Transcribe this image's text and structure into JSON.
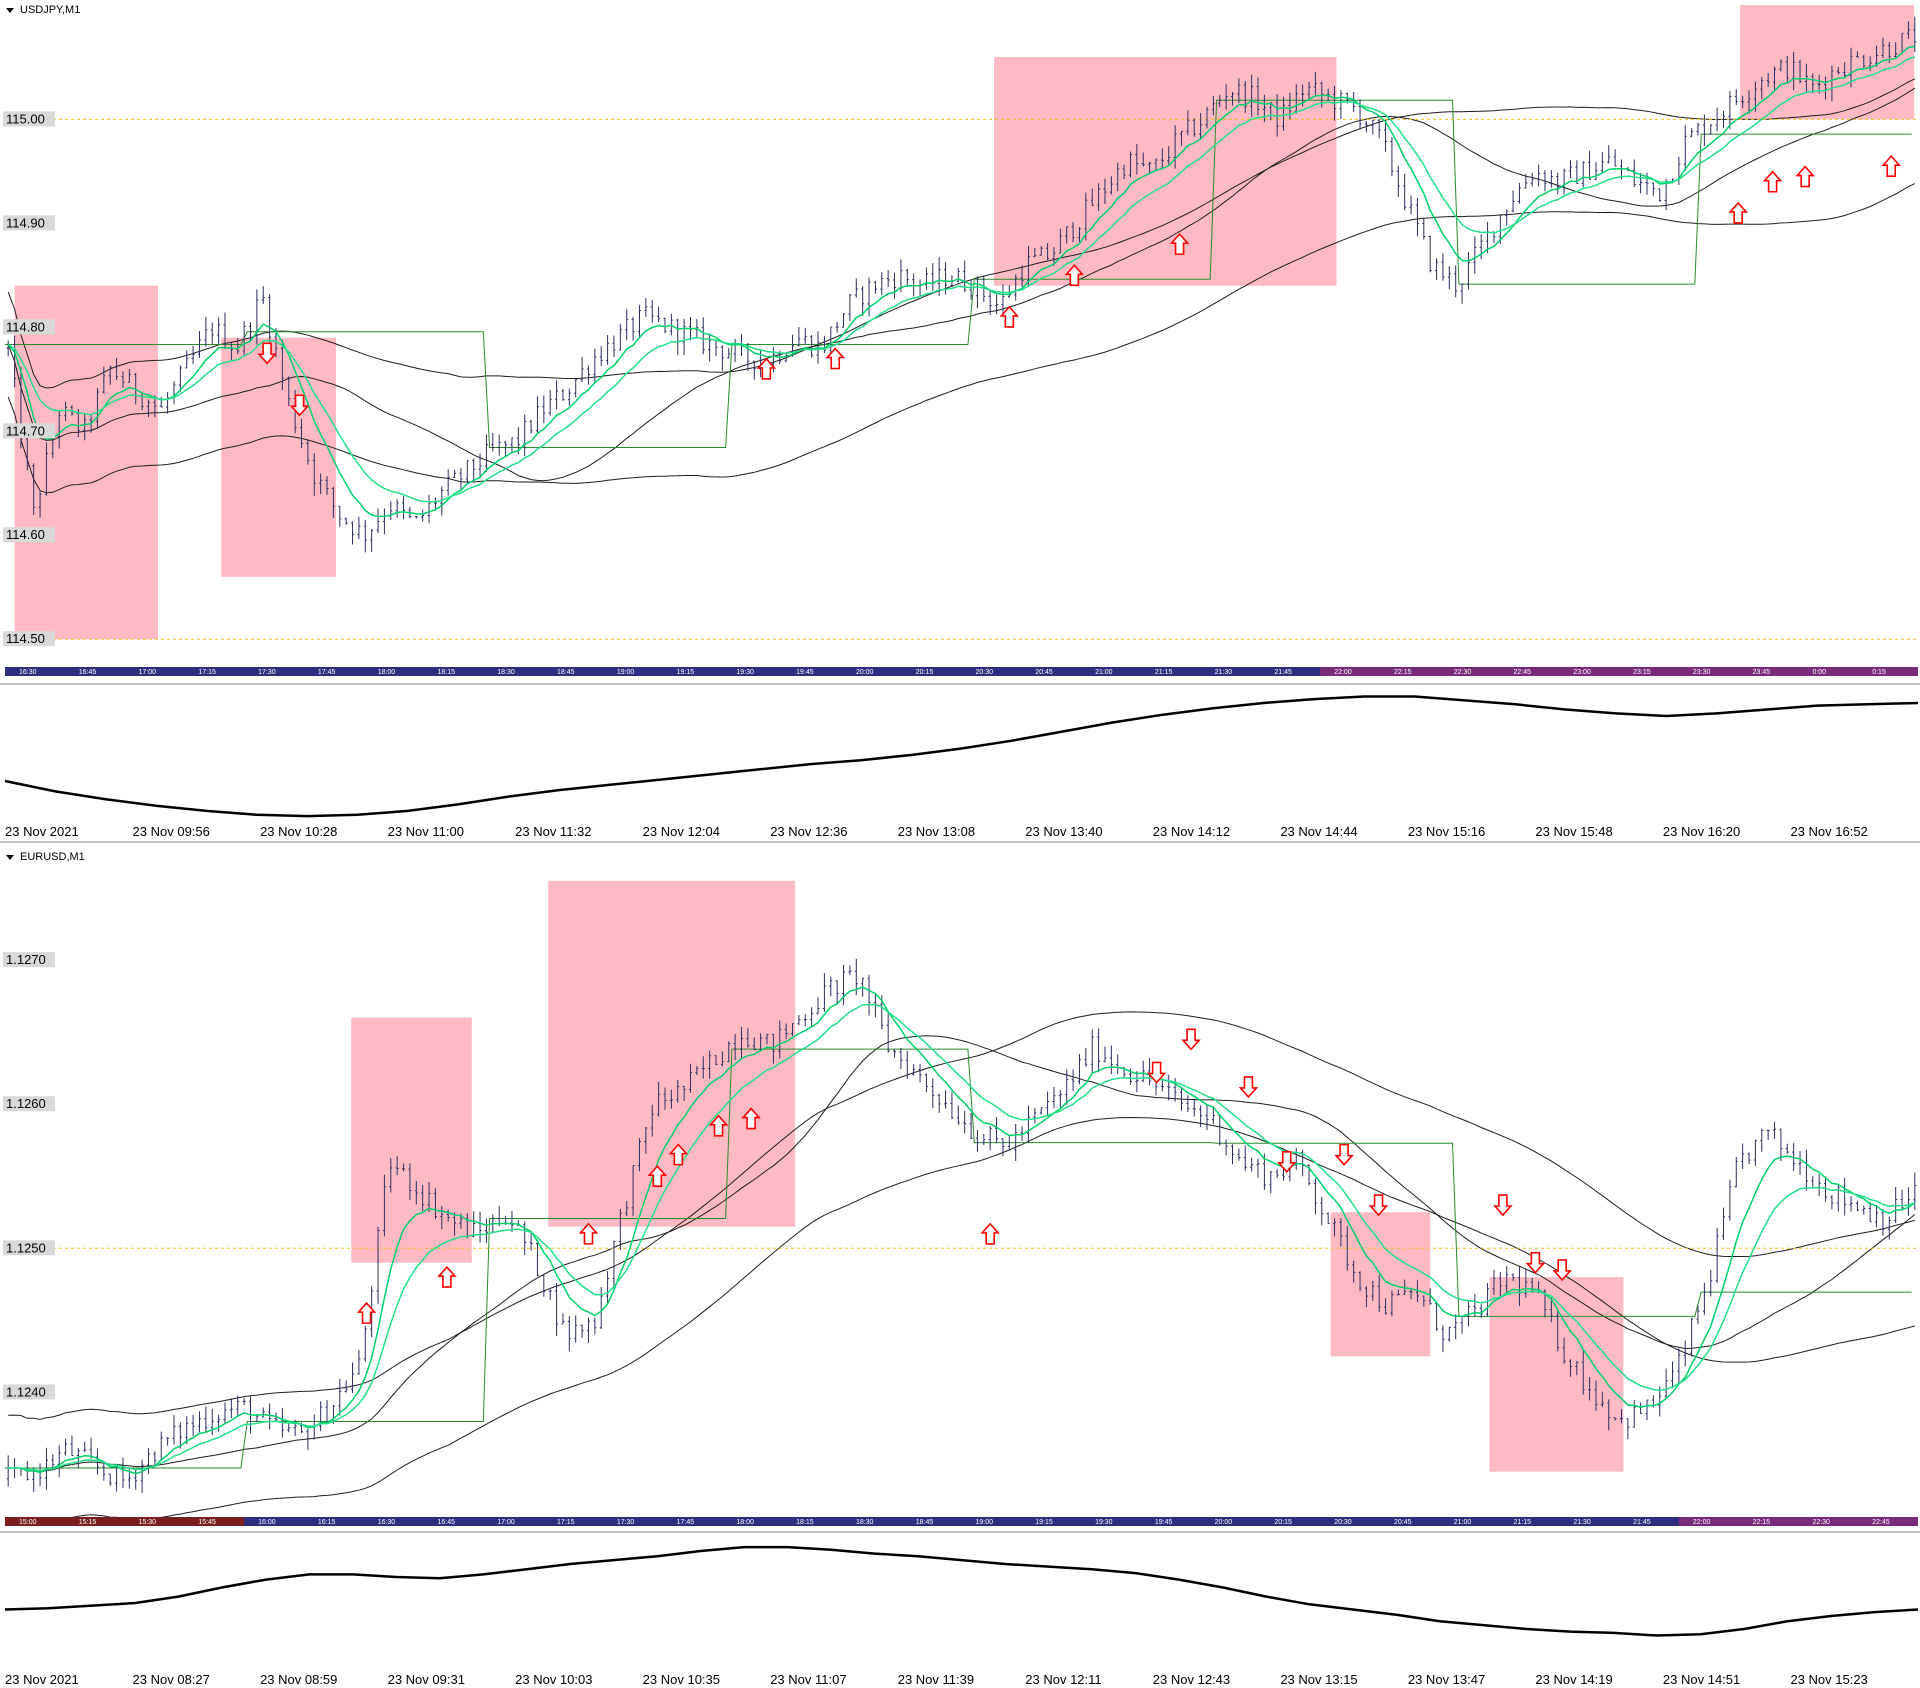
{
  "colors": {
    "background": "#ffffff",
    "candle": "#2b2d63",
    "zone": "#ffb6c1",
    "ma_fast": "#00d26a",
    "ma_slow": "#22e08a",
    "band": "#1e1e1e",
    "stepline": "#2a8a2a",
    "arrow": "#ff0000",
    "level": "#f0c020",
    "oscillator": "#000000",
    "time_strip_a": "#2e2e80",
    "time_strip_b": "#7a1e1e",
    "time_strip_c": "#7a2a7a"
  },
  "chart_data": [
    {
      "type": "candlestick",
      "title": "USDJPY,M1",
      "y_ticks": [
        "115.00",
        "114.90",
        "114.80",
        "114.70",
        "114.60",
        "114.50"
      ],
      "ylim": [
        114.48,
        115.11
      ],
      "horizontal_levels": [
        115.0,
        114.5
      ],
      "time_strip_labels": [
        "16:30",
        "16:45",
        "17:00",
        "17:15",
        "17:30",
        "17:45",
        "18:00",
        "18:15",
        "18:30",
        "18:45",
        "19:00",
        "19:15",
        "19:30",
        "19:45",
        "20:00",
        "20:15",
        "20:30",
        "20:45",
        "21:00",
        "21:15",
        "21:30",
        "21:45",
        "22:00",
        "22:15",
        "22:30",
        "22:45",
        "23:00",
        "23:15",
        "23:30",
        "23:45",
        "0:00",
        "0:15"
      ],
      "x_axis_labels": [
        "23 Nov 2021",
        "23 Nov 09:56",
        "23 Nov 10:28",
        "23 Nov 11:00",
        "23 Nov 11:32",
        "23 Nov 12:04",
        "23 Nov 12:36",
        "23 Nov 13:08",
        "23 Nov 13:40",
        "23 Nov 14:12",
        "23 Nov 14:44",
        "23 Nov 15:16",
        "23 Nov 15:48",
        "23 Nov 16:20",
        "23 Nov 16:52"
      ],
      "close_series": [
        114.78,
        114.62,
        114.72,
        114.7,
        114.76,
        114.74,
        114.72,
        114.76,
        114.8,
        114.78,
        114.83,
        114.73,
        114.66,
        114.62,
        114.6,
        114.63,
        114.61,
        114.64,
        114.66,
        114.68,
        114.69,
        114.72,
        114.74,
        114.77,
        114.79,
        114.81,
        114.8,
        114.79,
        114.78,
        114.77,
        114.77,
        114.79,
        114.78,
        114.82,
        114.84,
        114.85,
        114.84,
        114.85,
        114.84,
        114.82,
        114.86,
        114.87,
        114.9,
        114.93,
        114.96,
        114.95,
        114.98,
        115.0,
        115.03,
        115.02,
        115.0,
        115.03,
        115.02,
        115.01,
        114.98,
        114.92,
        114.86,
        114.84,
        114.88,
        114.92,
        114.95,
        114.94,
        114.95,
        114.96,
        114.94,
        114.93,
        114.98,
        115.0,
        115.02,
        115.04,
        115.05,
        115.03,
        115.05,
        115.06,
        115.07,
        115.08
      ],
      "zones": [
        {
          "from": 0.005,
          "to": 0.08,
          "low": 114.5,
          "high": 114.84
        },
        {
          "from": 0.113,
          "to": 0.173,
          "low": 114.56,
          "high": 114.79
        },
        {
          "from": 0.517,
          "to": 0.696,
          "low": 114.84,
          "high": 115.06
        },
        {
          "from": 0.907,
          "to": 0.998,
          "low": 115.0,
          "high": 115.11
        }
      ],
      "arrows": [
        {
          "t": 0.137,
          "y": 114.775,
          "dir": "down"
        },
        {
          "t": 0.154,
          "y": 114.725,
          "dir": "down"
        },
        {
          "t": 0.398,
          "y": 114.76,
          "dir": "up"
        },
        {
          "t": 0.434,
          "y": 114.77,
          "dir": "up"
        },
        {
          "t": 0.525,
          "y": 114.81,
          "dir": "up"
        },
        {
          "t": 0.559,
          "y": 114.85,
          "dir": "up"
        },
        {
          "t": 0.614,
          "y": 114.88,
          "dir": "up"
        },
        {
          "t": 0.906,
          "y": 114.91,
          "dir": "up"
        },
        {
          "t": 0.924,
          "y": 114.94,
          "dir": "up"
        },
        {
          "t": 0.941,
          "y": 114.945,
          "dir": "up"
        },
        {
          "t": 0.986,
          "y": 114.955,
          "dir": "up"
        }
      ],
      "oscillator": [
        0.3,
        0.22,
        0.16,
        0.11,
        0.07,
        0.04,
        0.03,
        0.04,
        0.07,
        0.12,
        0.18,
        0.23,
        0.27,
        0.31,
        0.35,
        0.39,
        0.43,
        0.46,
        0.5,
        0.55,
        0.61,
        0.68,
        0.75,
        0.81,
        0.86,
        0.9,
        0.93,
        0.95,
        0.95,
        0.92,
        0.89,
        0.85,
        0.82,
        0.8,
        0.82,
        0.85,
        0.88,
        0.89,
        0.9
      ]
    },
    {
      "type": "candlestick",
      "title": "EURUSD,M1",
      "y_ticks": [
        "1.1270",
        "1.1260",
        "1.1250",
        "1.1240"
      ],
      "ylim": [
        1.12317,
        1.12775
      ],
      "horizontal_levels": [
        1.125
      ],
      "time_strip_labels": [
        "15:00",
        "15:15",
        "15:30",
        "15:45",
        "16:00",
        "16:15",
        "16:30",
        "16:45",
        "17:00",
        "17:15",
        "17:30",
        "17:45",
        "18:00",
        "18:15",
        "18:30",
        "18:45",
        "19:00",
        "19:15",
        "19:30",
        "19:45",
        "20:00",
        "20:15",
        "20:30",
        "20:45",
        "21:00",
        "21:15",
        "21:30",
        "21:45",
        "22:00",
        "22:15",
        "22:30",
        "22:45"
      ],
      "x_axis_labels": [
        "23 Nov 2021",
        "23 Nov 08:27",
        "23 Nov 08:59",
        "23 Nov 09:31",
        "23 Nov 10:03",
        "23 Nov 10:35",
        "23 Nov 11:07",
        "23 Nov 11:39",
        "23 Nov 12:11",
        "23 Nov 12:43",
        "23 Nov 13:15",
        "23 Nov 13:47",
        "23 Nov 14:19",
        "23 Nov 14:51",
        "23 Nov 15:23"
      ],
      "close_series": [
        1.1234,
        1.12345,
        1.1236,
        1.12348,
        1.12338,
        1.1236,
        1.12375,
        1.12385,
        1.1239,
        1.12375,
        1.1237,
        1.1239,
        1.1242,
        1.1256,
        1.1254,
        1.1252,
        1.1251,
        1.12525,
        1.1249,
        1.1244,
        1.1245,
        1.1253,
        1.126,
        1.1261,
        1.1263,
        1.1265,
        1.1264,
        1.1266,
        1.1268,
        1.1269,
        1.1264,
        1.1262,
        1.126,
        1.1258,
        1.1257,
        1.1259,
        1.1261,
        1.1264,
        1.12625,
        1.12615,
        1.126,
        1.1259,
        1.1256,
        1.1255,
        1.1256,
        1.1252,
        1.1248,
        1.1246,
        1.1247,
        1.1244,
        1.12455,
        1.1248,
        1.1247,
        1.1243,
        1.124,
        1.1238,
        1.1239,
        1.1242,
        1.1248,
        1.1256,
        1.1258,
        1.1256,
        1.1254,
        1.1253,
        1.1252,
        1.1254
      ],
      "zones": [
        {
          "from": 0.181,
          "to": 0.244,
          "low": 1.1249,
          "high": 1.1266
        },
        {
          "from": 0.284,
          "to": 0.413,
          "low": 1.12515,
          "high": 1.12755
        },
        {
          "from": 0.693,
          "to": 0.745,
          "low": 1.12425,
          "high": 1.12525
        },
        {
          "from": 0.776,
          "to": 0.846,
          "low": 1.12345,
          "high": 1.1248
        }
      ],
      "arrows": [
        {
          "t": 0.189,
          "y": 1.12455,
          "dir": "up"
        },
        {
          "t": 0.231,
          "y": 1.1248,
          "dir": "up"
        },
        {
          "t": 0.305,
          "y": 1.1251,
          "dir": "up"
        },
        {
          "t": 0.341,
          "y": 1.1255,
          "dir": "up"
        },
        {
          "t": 0.352,
          "y": 1.12565,
          "dir": "up"
        },
        {
          "t": 0.373,
          "y": 1.12585,
          "dir": "up"
        },
        {
          "t": 0.39,
          "y": 1.1259,
          "dir": "up"
        },
        {
          "t": 0.515,
          "y": 1.1251,
          "dir": "up"
        },
        {
          "t": 0.602,
          "y": 1.12622,
          "dir": "down"
        },
        {
          "t": 0.62,
          "y": 1.12645,
          "dir": "down"
        },
        {
          "t": 0.65,
          "y": 1.12612,
          "dir": "down"
        },
        {
          "t": 0.67,
          "y": 1.1256,
          "dir": "down"
        },
        {
          "t": 0.7,
          "y": 1.12565,
          "dir": "down"
        },
        {
          "t": 0.718,
          "y": 1.1253,
          "dir": "down"
        },
        {
          "t": 0.783,
          "y": 1.1253,
          "dir": "down"
        },
        {
          "t": 0.8,
          "y": 1.1249,
          "dir": "down"
        },
        {
          "t": 0.814,
          "y": 1.12485,
          "dir": "down"
        }
      ],
      "oscillator": [
        0.45,
        0.46,
        0.48,
        0.5,
        0.55,
        0.62,
        0.68,
        0.72,
        0.72,
        0.7,
        0.69,
        0.72,
        0.76,
        0.8,
        0.83,
        0.86,
        0.9,
        0.93,
        0.93,
        0.91,
        0.88,
        0.86,
        0.83,
        0.8,
        0.78,
        0.76,
        0.73,
        0.68,
        0.62,
        0.55,
        0.49,
        0.45,
        0.41,
        0.36,
        0.33,
        0.3,
        0.28,
        0.27,
        0.25,
        0.26,
        0.3,
        0.36,
        0.4,
        0.43,
        0.45
      ]
    }
  ]
}
